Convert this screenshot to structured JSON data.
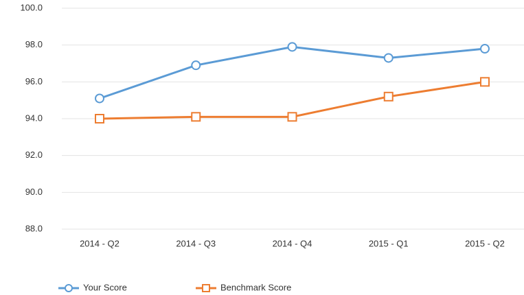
{
  "chart_data": {
    "type": "line",
    "categories": [
      "2014 - Q2",
      "2014 - Q3",
      "2014 - Q4",
      "2015 - Q1",
      "2015 - Q2"
    ],
    "series": [
      {
        "name": "Your Score",
        "color": "#5b9bd5",
        "values": [
          95.1,
          96.9,
          97.9,
          97.3,
          97.8
        ]
      },
      {
        "name": "Benchmark Score",
        "color": "#ed7d31",
        "values": [
          94.0,
          94.1,
          94.1,
          95.2,
          96.0
        ]
      }
    ],
    "ylim": [
      88,
      100
    ],
    "yticks": [
      {
        "value": 88,
        "label": "88.0"
      },
      {
        "value": 90,
        "label": "90.0"
      },
      {
        "value": 92,
        "label": "92.0"
      },
      {
        "value": 94,
        "label": "94.0"
      },
      {
        "value": 96,
        "label": "96.0"
      },
      {
        "value": 98,
        "label": "98.0"
      },
      {
        "value": 100,
        "label": "100.0"
      }
    ],
    "grid": true,
    "legend": "bottom-left"
  }
}
